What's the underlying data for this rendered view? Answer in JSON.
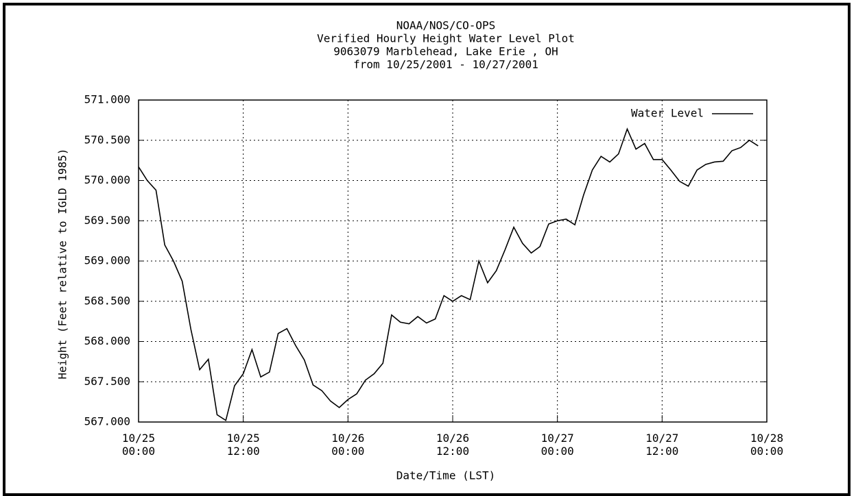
{
  "chart_data": {
    "type": "line",
    "title": [
      "NOAA/NOS/CO-OPS",
      "Verified Hourly Height Water Level Plot",
      "9063079 Marblehead, Lake Erie , OH",
      "from 10/25/2001 - 10/27/2001"
    ],
    "xlabel": "Date/Time (LST)",
    "ylabel": "Height (Feet relative to IGLD 1985)",
    "x": [
      "10/25 00:00",
      "10/25 01:00",
      "10/25 02:00",
      "10/25 03:00",
      "10/25 04:00",
      "10/25 05:00",
      "10/25 06:00",
      "10/25 07:00",
      "10/25 08:00",
      "10/25 09:00",
      "10/25 10:00",
      "10/25 11:00",
      "10/25 12:00",
      "10/25 13:00",
      "10/25 14:00",
      "10/25 15:00",
      "10/25 16:00",
      "10/25 17:00",
      "10/25 18:00",
      "10/25 19:00",
      "10/25 20:00",
      "10/25 21:00",
      "10/25 22:00",
      "10/25 23:00",
      "10/26 00:00",
      "10/26 01:00",
      "10/26 02:00",
      "10/26 03:00",
      "10/26 04:00",
      "10/26 05:00",
      "10/26 06:00",
      "10/26 07:00",
      "10/26 08:00",
      "10/26 09:00",
      "10/26 10:00",
      "10/26 11:00",
      "10/26 12:00",
      "10/26 13:00",
      "10/26 14:00",
      "10/26 15:00",
      "10/26 16:00",
      "10/26 17:00",
      "10/26 18:00",
      "10/26 19:00",
      "10/26 20:00",
      "10/26 21:00",
      "10/26 22:00",
      "10/26 23:00",
      "10/27 00:00",
      "10/27 01:00",
      "10/27 02:00",
      "10/27 03:00",
      "10/27 04:00",
      "10/27 05:00",
      "10/27 06:00",
      "10/27 07:00",
      "10/27 08:00",
      "10/27 09:00",
      "10/27 10:00",
      "10/27 11:00",
      "10/27 12:00",
      "10/27 13:00",
      "10/27 14:00",
      "10/27 15:00",
      "10/27 16:00",
      "10/27 17:00",
      "10/27 18:00",
      "10/27 19:00",
      "10/27 20:00",
      "10/27 21:00",
      "10/27 22:00",
      "10/27 23:00"
    ],
    "series": [
      {
        "name": "Water Level",
        "color": "#000000",
        "values": [
          570.17,
          570.0,
          569.88,
          569.2,
          569.0,
          568.75,
          568.15,
          567.65,
          567.78,
          567.09,
          567.02,
          567.45,
          567.6,
          567.9,
          567.56,
          567.62,
          568.1,
          568.16,
          567.95,
          567.77,
          567.46,
          567.39,
          567.26,
          567.18,
          567.28,
          567.35,
          567.52,
          567.6,
          567.73,
          568.33,
          568.24,
          568.22,
          568.31,
          568.23,
          568.28,
          568.57,
          568.5,
          568.57,
          568.52,
          569.0,
          568.73,
          568.88,
          569.14,
          569.42,
          569.22,
          569.1,
          569.18,
          569.46,
          569.5,
          569.52,
          569.45,
          569.82,
          570.13,
          570.3,
          570.23,
          570.33,
          570.64,
          570.39,
          570.46,
          570.26,
          570.26,
          570.13,
          569.99,
          569.93,
          570.13,
          570.2,
          570.23,
          570.24,
          570.37,
          570.41,
          570.5,
          570.43
        ]
      }
    ],
    "xlim": [
      "10/25 00:00",
      "10/28 00:00"
    ],
    "xticks": [
      "10/25 00:00",
      "10/25 12:00",
      "10/26 00:00",
      "10/26 12:00",
      "10/27 00:00",
      "10/27 12:00",
      "10/28 00:00"
    ],
    "ylim": [
      567,
      571
    ],
    "yticks": [
      {
        "value": 567,
        "label": "567.000"
      },
      {
        "value": 567.5,
        "label": "567.500"
      },
      {
        "value": 568,
        "label": "568.000"
      },
      {
        "value": 568.5,
        "label": "568.500"
      },
      {
        "value": 569,
        "label": "569.000"
      },
      {
        "value": 569.5,
        "label": "569.500"
      },
      {
        "value": 570,
        "label": "570.000"
      },
      {
        "value": 570.5,
        "label": "570.500"
      },
      {
        "value": 571,
        "label": "571.000"
      }
    ],
    "grid": true,
    "legend": "upper right"
  }
}
